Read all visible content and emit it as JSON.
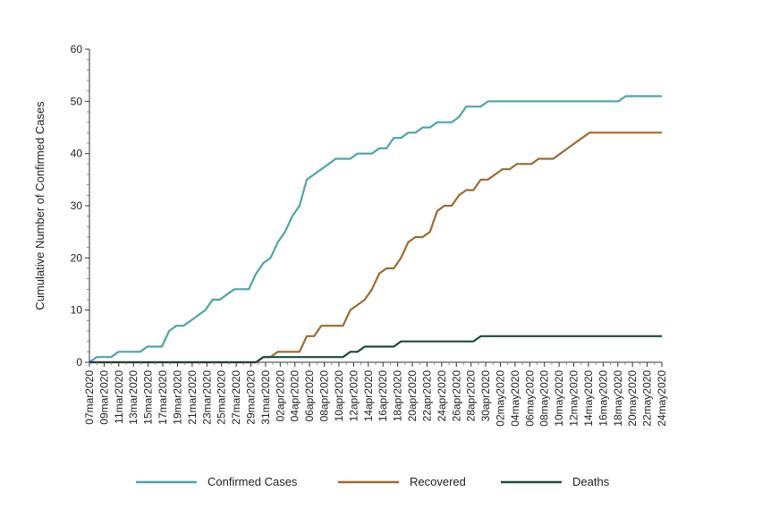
{
  "chart_data": {
    "type": "line",
    "title": "",
    "xlabel": "",
    "ylabel": "Cumulative Number of Confirmed Cases",
    "ylim": [
      0,
      60
    ],
    "yticks": [
      "0",
      "10",
      "20",
      "30",
      "40",
      "50",
      "60"
    ],
    "x_range": [
      "07mar2020",
      "24may2020"
    ],
    "x_tick_labels": [
      "07mar2020",
      "09mar2020",
      "11mar2020",
      "13mar2020",
      "15mar2020",
      "17mar2020",
      "19mar2020",
      "21mar2020",
      "23mar2020",
      "25mar2020",
      "27mar2020",
      "29mar2020",
      "31mar2020",
      "02apr2020",
      "04apr2020",
      "06apr2020",
      "08apr2020",
      "10apr2020",
      "12apr2020",
      "14apr2020",
      "16apr2020",
      "18apr2020",
      "20apr2020",
      "22apr2020",
      "24apr2020",
      "26apr2020",
      "28apr2020",
      "30apr2020",
      "02may2020",
      "04may2020",
      "06may2020",
      "08may2020",
      "10may2020",
      "12may2020",
      "14may2020",
      "16may2020",
      "18may2020",
      "20may2020",
      "22may2020",
      "24may2020"
    ],
    "grid": false,
    "legend_position": "bottom",
    "series": [
      {
        "name": "Confirmed Cases",
        "color": "#4ca6a5",
        "values": [
          0,
          1,
          1,
          1,
          2,
          2,
          2,
          2,
          3,
          3,
          3,
          6,
          7,
          7,
          8,
          9,
          10,
          12,
          12,
          13,
          14,
          14,
          14,
          17,
          19,
          20,
          23,
          25,
          28,
          30,
          35,
          36,
          37,
          38,
          39,
          39,
          39,
          40,
          40,
          40,
          41,
          41,
          43,
          43,
          44,
          44,
          45,
          45,
          46,
          46,
          46,
          47,
          49,
          49,
          49,
          50,
          50,
          50,
          50,
          50,
          50,
          50,
          50,
          50,
          50,
          50,
          50,
          50,
          50,
          50,
          50,
          50,
          50,
          50,
          51,
          51,
          51,
          51,
          51,
          51
        ]
      },
      {
        "name": "Recovered",
        "color": "#9e6a2f",
        "values": [
          0,
          0,
          0,
          0,
          0,
          0,
          0,
          0,
          0,
          0,
          0,
          0,
          0,
          0,
          0,
          0,
          0,
          0,
          0,
          0,
          0,
          0,
          0,
          0,
          1,
          1,
          2,
          2,
          2,
          2,
          5,
          5,
          7,
          7,
          7,
          7,
          10,
          11,
          12,
          14,
          17,
          18,
          18,
          20,
          23,
          24,
          24,
          25,
          29,
          30,
          30,
          32,
          33,
          33,
          35,
          35,
          36,
          37,
          37,
          38,
          38,
          38,
          39,
          39,
          39,
          40,
          41,
          42,
          43,
          44,
          44,
          44,
          44,
          44,
          44,
          44,
          44,
          44,
          44,
          44
        ]
      },
      {
        "name": "Deaths",
        "color": "#1d4a3e",
        "values": [
          0,
          0,
          0,
          0,
          0,
          0,
          0,
          0,
          0,
          0,
          0,
          0,
          0,
          0,
          0,
          0,
          0,
          0,
          0,
          0,
          0,
          0,
          0,
          0,
          1,
          1,
          1,
          1,
          1,
          1,
          1,
          1,
          1,
          1,
          1,
          1,
          2,
          2,
          3,
          3,
          3,
          3,
          3,
          4,
          4,
          4,
          4,
          4,
          4,
          4,
          4,
          4,
          4,
          4,
          5,
          5,
          5,
          5,
          5,
          5,
          5,
          5,
          5,
          5,
          5,
          5,
          5,
          5,
          5,
          5,
          5,
          5,
          5,
          5,
          5,
          5,
          5,
          5,
          5,
          5
        ]
      }
    ]
  }
}
